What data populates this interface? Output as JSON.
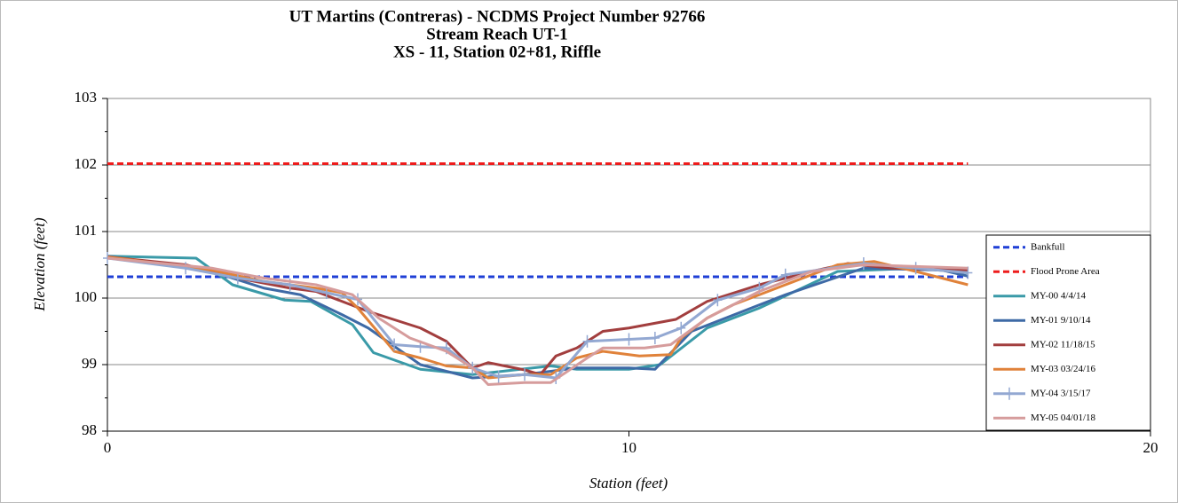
{
  "chart_data": {
    "type": "line",
    "title": [
      "UT Martins (Contreras) - NCDMS Project Number 92766",
      "Stream Reach UT-1",
      "XS - 11, Station 02+81, Riffle"
    ],
    "x_label": "Station (feet)",
    "y_label": "Elevation (feet)",
    "xlim": [
      0,
      20
    ],
    "xticks": [
      0,
      10,
      20
    ],
    "ylim": [
      98,
      103
    ],
    "yticks": [
      98,
      99,
      100,
      101,
      102,
      103
    ],
    "grid": true,
    "legend": "right",
    "series": [
      {
        "name": "Bankfull",
        "color": "#1f3fd6",
        "style": "dashed",
        "x": [
          0,
          16.5
        ],
        "values": [
          100.32,
          100.32
        ]
      },
      {
        "name": "Flood Prone Area",
        "color": "#ee1c1c",
        "style": "dashed",
        "x": [
          0,
          16.5
        ],
        "values": [
          102.02,
          102.02
        ]
      },
      {
        "name": "MY-00 4/4/14",
        "color": "#3a9aa8",
        "x": [
          0,
          1.7,
          2.4,
          3.4,
          3.9,
          4.7,
          5.1,
          6.0,
          7.0,
          8.5,
          9.0,
          10.0,
          10.6,
          11.5,
          12.5,
          14.0,
          15.5,
          16.5
        ],
        "values": [
          100.63,
          100.6,
          100.2,
          99.97,
          99.95,
          99.6,
          99.18,
          98.93,
          98.85,
          98.98,
          98.93,
          98.93,
          99.0,
          99.55,
          99.85,
          100.4,
          100.45,
          100.38
        ]
      },
      {
        "name": "MY-01 9/10/14",
        "color": "#3e6aa6",
        "x": [
          0,
          2.0,
          3.0,
          3.7,
          4.5,
          5.0,
          6.0,
          7.0,
          8.0,
          9.0,
          10.0,
          10.5,
          11.2,
          13.0,
          14.5,
          16.0,
          16.5
        ],
        "values": [
          100.63,
          100.4,
          100.15,
          100.05,
          99.75,
          99.55,
          99.0,
          98.8,
          98.85,
          98.95,
          98.95,
          98.93,
          99.5,
          100.05,
          100.45,
          100.42,
          100.33
        ]
      },
      {
        "name": "MY-02 11/18/15",
        "color": "#a23e3e",
        "x": [
          0,
          1.5,
          2.5,
          3.5,
          4.0,
          4.5,
          5.0,
          6.0,
          6.5,
          7.0,
          7.3,
          8.0,
          8.3,
          8.6,
          9.0,
          9.5,
          10.0,
          10.9,
          11.5,
          12.5,
          13.5,
          14.2,
          15.0,
          16.5
        ],
        "values": [
          100.62,
          100.5,
          100.3,
          100.15,
          100.1,
          99.95,
          99.8,
          99.55,
          99.35,
          98.95,
          99.03,
          98.92,
          98.85,
          99.13,
          99.25,
          99.5,
          99.55,
          99.68,
          99.95,
          100.2,
          100.4,
          100.52,
          100.45,
          100.42
        ]
      },
      {
        "name": "MY-03 03/24/16",
        "color": "#e0823a",
        "x": [
          0,
          2.0,
          3.0,
          4.0,
          4.5,
          4.8,
          5.5,
          6.0,
          6.5,
          7.0,
          7.3,
          8.0,
          8.5,
          9.0,
          9.5,
          10.2,
          10.8,
          11.0,
          11.5,
          12.0,
          13.0,
          14.0,
          14.7,
          15.5,
          16.5
        ],
        "values": [
          100.62,
          100.42,
          100.25,
          100.15,
          100.08,
          99.85,
          99.2,
          99.1,
          98.98,
          98.95,
          98.8,
          98.85,
          98.85,
          99.1,
          99.2,
          99.13,
          99.15,
          99.4,
          99.7,
          99.9,
          100.2,
          100.5,
          100.55,
          100.4,
          100.2
        ]
      },
      {
        "name": "MY-04 3/15/17",
        "color": "#93a8d2",
        "marker": "plus",
        "x": [
          0,
          1.5,
          2.5,
          3.5,
          4.2,
          4.8,
          5.5,
          6.0,
          6.5,
          7.0,
          7.5,
          8.0,
          8.6,
          9.2,
          10.0,
          10.5,
          11.0,
          11.7,
          12.5,
          13.0,
          14.5,
          15.5,
          16.5
        ],
        "values": [
          100.6,
          100.45,
          100.3,
          100.2,
          100.08,
          99.98,
          99.3,
          99.27,
          99.25,
          98.95,
          98.82,
          98.85,
          98.8,
          99.35,
          99.38,
          99.4,
          99.55,
          99.97,
          100.15,
          100.35,
          100.52,
          100.45,
          100.38
        ]
      },
      {
        "name": "MY-05 04/01/18",
        "color": "#d69c9c",
        "x": [
          0,
          2.0,
          3.0,
          4.0,
          4.7,
          5.2,
          5.8,
          6.5,
          7.0,
          7.3,
          8.0,
          8.5,
          9.2,
          9.5,
          10.3,
          10.8,
          11.5,
          12.5,
          13.5,
          14.5,
          16.5
        ],
        "values": [
          100.6,
          100.45,
          100.3,
          100.2,
          100.05,
          99.7,
          99.4,
          99.2,
          98.95,
          98.7,
          98.73,
          98.73,
          99.1,
          99.25,
          99.25,
          99.3,
          99.7,
          100.1,
          100.4,
          100.5,
          100.45
        ]
      }
    ]
  }
}
